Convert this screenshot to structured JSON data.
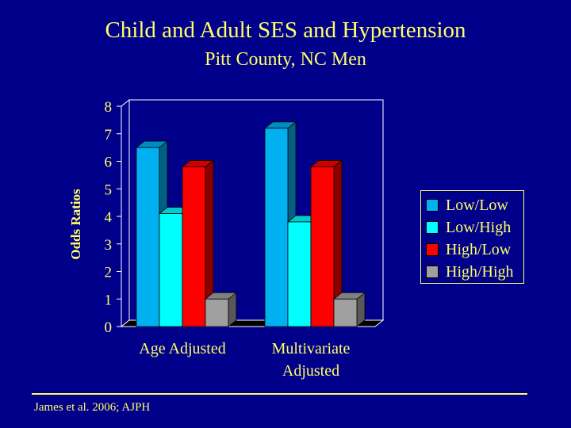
{
  "title": "Child and Adult SES and Hypertension",
  "subtitle": "Pitt County, NC Men",
  "citation": "James et al. 2006; AJPH",
  "chart_data": {
    "type": "bar",
    "title": "Child and Adult SES and Hypertension",
    "subtitle": "Pitt County, NC Men",
    "ylabel": "Odds Ratios",
    "xlabel": "",
    "ylim": [
      0,
      8
    ],
    "yticks": [
      "0",
      "1",
      "2",
      "3",
      "4",
      "5",
      "6",
      "7",
      "8"
    ],
    "categories": [
      "Age Adjusted",
      "Multivariate Adjusted"
    ],
    "category_lines": [
      [
        "Age Adjusted"
      ],
      [
        "Multivariate",
        "Adjusted"
      ]
    ],
    "series": [
      {
        "name": "Low/Low",
        "color": "#00B0F0",
        "values": [
          6.5,
          7.2
        ]
      },
      {
        "name": "Low/High",
        "color": "#00FFFF",
        "values": [
          4.1,
          3.8
        ]
      },
      {
        "name": "High/Low",
        "color": "#FF0000",
        "values": [
          5.8,
          5.8
        ]
      },
      {
        "name": "High/High",
        "color": "#A0A0A0",
        "values": [
          1.0,
          1.0
        ]
      }
    ],
    "legend_position": "right",
    "grid": false,
    "style": "3d"
  },
  "colors": {
    "background": "#00008B",
    "text": "#FFFF66",
    "axis": "#FFFFFF"
  }
}
